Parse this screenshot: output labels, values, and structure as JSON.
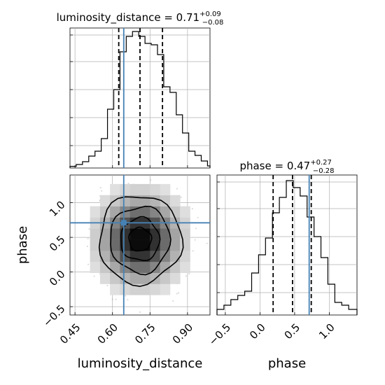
{
  "chart_data": [
    {
      "type": "histogram",
      "panel": "top-left",
      "title": {
        "param": "luminosity_distance",
        "value": "0.71",
        "plus": "+0.09",
        "minus": "−0.08"
      },
      "x_range": [
        0.43,
        0.99
      ],
      "y_range": [
        0,
        1.0
      ],
      "quantiles": [
        0.625,
        0.71,
        0.8
      ],
      "truth": 0.645,
      "bin_edges": [
        0.43,
        0.455,
        0.48,
        0.505,
        0.53,
        0.555,
        0.58,
        0.605,
        0.63,
        0.655,
        0.68,
        0.705,
        0.73,
        0.755,
        0.78,
        0.805,
        0.83,
        0.855,
        0.88,
        0.905,
        0.93,
        0.955,
        0.98,
        0.99
      ],
      "counts": [
        0.012,
        0.025,
        0.045,
        0.085,
        0.12,
        0.21,
        0.42,
        0.56,
        0.83,
        0.94,
        0.975,
        0.94,
        0.89,
        0.88,
        0.81,
        0.58,
        0.54,
        0.38,
        0.25,
        0.12,
        0.09,
        0.05,
        0.015
      ]
    },
    {
      "type": "histogram",
      "panel": "bottom-right",
      "title": {
        "param": "phase",
        "value": "0.47",
        "plus": "+0.27",
        "minus": "−0.28"
      },
      "xlabel": "phase",
      "x_range": [
        -0.62,
        1.4
      ],
      "xticks": [
        "−0.5",
        "0.0",
        "0.5",
        "1.0"
      ],
      "xtick_values": [
        -0.5,
        0.0,
        0.5,
        1.0
      ],
      "y_range": [
        0,
        1.0
      ],
      "quantiles": [
        0.19,
        0.47,
        0.74
      ],
      "truth": 0.71,
      "bin_edges": [
        -0.62,
        -0.52,
        -0.42,
        -0.32,
        -0.22,
        -0.12,
        -0.02,
        0.08,
        0.18,
        0.28,
        0.38,
        0.48,
        0.58,
        0.68,
        0.78,
        0.88,
        0.98,
        1.08,
        1.18,
        1.28,
        1.4
      ],
      "counts": [
        0.04,
        0.07,
        0.11,
        0.14,
        0.17,
        0.3,
        0.43,
        0.55,
        0.73,
        0.84,
        0.96,
        0.91,
        0.85,
        0.7,
        0.56,
        0.41,
        0.22,
        0.09,
        0.07,
        0.04
      ]
    },
    {
      "type": "2d-density",
      "panel": "bottom-left",
      "xlabel": "luminosity_distance",
      "ylabel": "phase",
      "x_range": [
        0.43,
        0.99
      ],
      "y_range": [
        -0.62,
        1.4
      ],
      "xticks": [
        "0.45",
        "0.60",
        "0.75",
        "0.90"
      ],
      "xtick_values": [
        0.45,
        0.6,
        0.75,
        0.9
      ],
      "yticks": [
        "−0.5",
        "0.0",
        "0.5",
        "1.0"
      ],
      "ytick_values": [
        -0.5,
        0.0,
        0.5,
        1.0
      ],
      "truth": [
        0.645,
        0.71
      ],
      "center": [
        0.71,
        0.47
      ],
      "contours": [
        {
          "rx": 0.045,
          "ry": 0.17
        },
        {
          "rx": 0.078,
          "ry": 0.31
        },
        {
          "rx": 0.12,
          "ry": 0.48
        },
        {
          "rx": 0.165,
          "ry": 0.64
        }
      ]
    }
  ],
  "colors": {
    "truth": "#4682b4",
    "grid": "#b0b0b0",
    "hist": "#000000",
    "density": "#808080"
  }
}
